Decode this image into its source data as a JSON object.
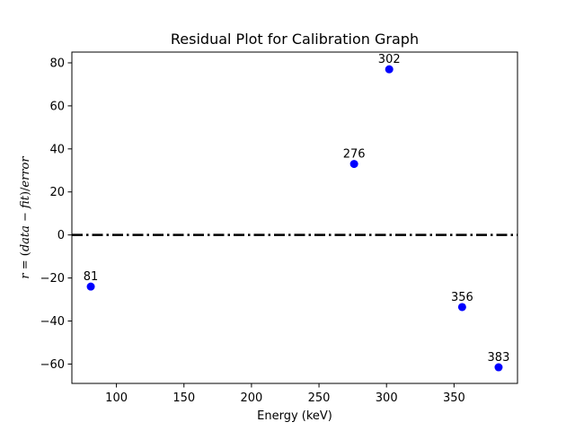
{
  "chart_data": {
    "type": "scatter",
    "title": "Residual Plot for Calibration Graph",
    "xlabel": "Energy (keV)",
    "ylabel_parts": [
      {
        "text": "r",
        "style": "italic"
      },
      {
        "text": " = (",
        "style": "roman"
      },
      {
        "text": "data",
        "style": "italic"
      },
      {
        "text": " − ",
        "style": "roman"
      },
      {
        "text": "fit",
        "style": "italic"
      },
      {
        "text": ")/",
        "style": "roman"
      },
      {
        "text": "error",
        "style": "italic"
      }
    ],
    "xlim": [
      67,
      397
    ],
    "ylim": [
      -69,
      85
    ],
    "xticks": [
      100,
      150,
      200,
      250,
      300,
      350
    ],
    "yticks": [
      -60,
      -40,
      -20,
      0,
      20,
      40,
      60,
      80
    ],
    "points": [
      {
        "x": 81,
        "y": -24,
        "label": "81"
      },
      {
        "x": 276,
        "y": 33,
        "label": "276"
      },
      {
        "x": 302,
        "y": 77,
        "label": "302"
      },
      {
        "x": 356,
        "y": -33.5,
        "label": "356"
      },
      {
        "x": 383,
        "y": -61.5,
        "label": "383"
      }
    ],
    "reference_line": {
      "y": 0,
      "style": "dash-dot",
      "color": "#000000"
    },
    "marker_color": "#0000ff",
    "grid": false,
    "legend": false
  }
}
